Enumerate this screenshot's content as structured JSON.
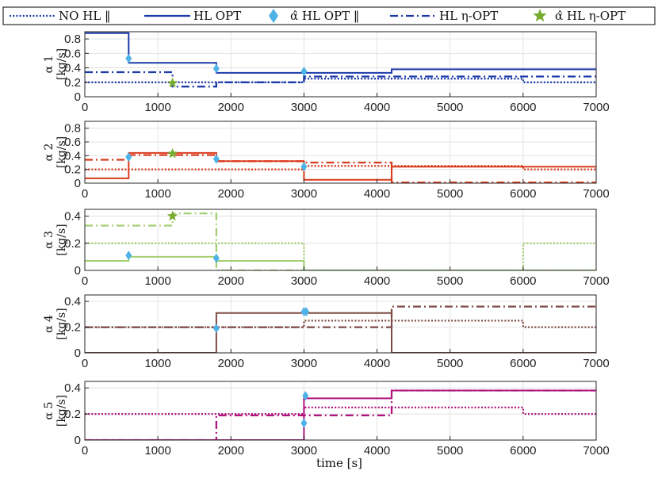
{
  "chart_data": {
    "type": "line",
    "legend": {
      "placement": "top",
      "entries": [
        {
          "label": "NO HL ‖",
          "style": "dotted",
          "symbol": "line"
        },
        {
          "label": "HL OPT",
          "style": "solid",
          "symbol": "line"
        },
        {
          "label": "α̂ HL OPT ‖",
          "style": "marker",
          "symbol": "diamond"
        },
        {
          "label": "HL η-OPT",
          "style": "dashdot",
          "symbol": "line"
        },
        {
          "label": "α̂ HL η-OPT",
          "style": "marker",
          "symbol": "star"
        }
      ],
      "diamond_color": "#4fb3e8",
      "star_color": "#77ac30"
    },
    "xlabel": "time [s]",
    "xlim": [
      0,
      7000
    ],
    "xticks": [
      0,
      1000,
      2000,
      3000,
      4000,
      5000,
      6000,
      7000
    ],
    "grid": true,
    "subplots": [
      {
        "ylabel_main": "α 1",
        "ylabel_unit": "[kg/s]",
        "color": "#1c3aa9",
        "ylim": [
          0,
          0.9
        ],
        "yticks": [
          0,
          0.2,
          0.4,
          0.6,
          0.8
        ],
        "series": [
          {
            "name": "NO HL ‖",
            "style": "dotted",
            "steps": [
              [
                0,
                0.2
              ],
              [
                3000,
                0.25
              ],
              [
                6000,
                0.2
              ],
              [
                7000,
                0.2
              ]
            ]
          },
          {
            "name": "HL OPT",
            "style": "solid",
            "steps": [
              [
                0,
                0.88
              ],
              [
                600,
                0.47
              ],
              [
                1800,
                0.33
              ],
              [
                4200,
                0.38
              ],
              [
                7000,
                0.38
              ]
            ]
          },
          {
            "name": "HL η-OPT",
            "style": "dashdot",
            "steps": [
              [
                0,
                0.34
              ],
              [
                1200,
                0.14
              ],
              [
                1800,
                0.2
              ],
              [
                3000,
                0.28
              ],
              [
                7000,
                0.28
              ]
            ]
          }
        ],
        "diamonds": [
          [
            600,
            0.53
          ],
          [
            1800,
            0.39
          ],
          [
            3000,
            0.35
          ]
        ],
        "stars": [
          [
            1200,
            0.19
          ]
        ]
      },
      {
        "ylabel_main": "α 2",
        "ylabel_unit": "[kg/s]",
        "color": "#d93a1c",
        "ylim": [
          0,
          0.9
        ],
        "yticks": [
          0,
          0.2,
          0.4,
          0.6,
          0.8
        ],
        "series": [
          {
            "name": "NO HL ‖",
            "style": "dotted",
            "steps": [
              [
                0,
                0.2
              ],
              [
                3000,
                0.25
              ],
              [
                6000,
                0.2
              ],
              [
                7000,
                0.2
              ]
            ]
          },
          {
            "name": "HL OPT",
            "style": "solid",
            "steps": [
              [
                0,
                0.07
              ],
              [
                600,
                0.44
              ],
              [
                1800,
                0.32
              ],
              [
                3000,
                0.05
              ],
              [
                4200,
                0.24
              ],
              [
                7000,
                0.24
              ]
            ]
          },
          {
            "name": "HL η-OPT",
            "style": "dashdot",
            "steps": [
              [
                0,
                0.34
              ],
              [
                600,
                0.41
              ],
              [
                1800,
                0.32
              ],
              [
                3000,
                0.3
              ],
              [
                4200,
                0.01
              ],
              [
                7000,
                0.01
              ]
            ]
          }
        ],
        "diamonds": [
          [
            600,
            0.38
          ],
          [
            1800,
            0.35
          ],
          [
            3000,
            0.24
          ]
        ],
        "stars": [
          [
            1200,
            0.43
          ]
        ]
      },
      {
        "ylabel_main": "α 3",
        "ylabel_unit": "[kg/s]",
        "color": "#a3cf73",
        "ylim": [
          0,
          0.45
        ],
        "yticks": [
          0,
          0.2,
          0.4
        ],
        "series": [
          {
            "name": "NO HL ‖",
            "style": "dotted",
            "steps": [
              [
                0,
                0.2
              ],
              [
                3000,
                0.0
              ],
              [
                6000,
                0.2
              ],
              [
                7000,
                0.2
              ]
            ]
          },
          {
            "name": "HL OPT",
            "style": "solid",
            "steps": [
              [
                0,
                0.07
              ],
              [
                600,
                0.1
              ],
              [
                1800,
                0.07
              ],
              [
                3000,
                0.0
              ],
              [
                7000,
                0.0
              ]
            ]
          },
          {
            "name": "HL η-OPT",
            "style": "dashdot",
            "steps": [
              [
                0,
                0.33
              ],
              [
                1200,
                0.42
              ],
              [
                1800,
                0.0
              ],
              [
                7000,
                0.0
              ]
            ]
          }
        ],
        "diamonds": [
          [
            600,
            0.11
          ],
          [
            1800,
            0.09
          ]
        ],
        "stars": [
          [
            1200,
            0.4
          ]
        ]
      },
      {
        "ylabel_main": "α 4",
        "ylabel_unit": "[kg/s]",
        "color": "#7e4a44",
        "ylim": [
          0,
          0.45
        ],
        "yticks": [
          0,
          0.2,
          0.4
        ],
        "series": [
          {
            "name": "NO HL ‖",
            "style": "dotted",
            "steps": [
              [
                0,
                0.2
              ],
              [
                3000,
                0.25
              ],
              [
                6000,
                0.2
              ],
              [
                7000,
                0.2
              ]
            ]
          },
          {
            "name": "HL OPT",
            "style": "solid",
            "steps": [
              [
                0,
                0.0
              ],
              [
                1800,
                0.31
              ],
              [
                4200,
                0.0
              ],
              [
                7000,
                0.0
              ]
            ]
          },
          {
            "name": "HL η-OPT",
            "style": "dashdot",
            "steps": [
              [
                0,
                0.2
              ],
              [
                1800,
                0.2
              ],
              [
                3000,
                0.2
              ],
              [
                4200,
                0.36
              ],
              [
                7000,
                0.36
              ]
            ]
          }
        ],
        "diamonds": [
          [
            1800,
            0.19
          ],
          [
            3000,
            0.32
          ],
          [
            3030,
            0.32
          ]
        ],
        "stars": []
      },
      {
        "ylabel_main": "α 5",
        "ylabel_unit": "[kg/s]",
        "color": "#b0167e",
        "ylim": [
          0,
          0.45
        ],
        "yticks": [
          0,
          0.2,
          0.4
        ],
        "series": [
          {
            "name": "NO HL ‖",
            "style": "dotted",
            "steps": [
              [
                0,
                0.2
              ],
              [
                3000,
                0.25
              ],
              [
                6000,
                0.2
              ],
              [
                7000,
                0.2
              ]
            ]
          },
          {
            "name": "HL OPT",
            "style": "solid",
            "steps": [
              [
                0,
                0.0
              ],
              [
                3000,
                0.32
              ],
              [
                4200,
                0.38
              ],
              [
                7000,
                0.38
              ]
            ]
          },
          {
            "name": "HL η-OPT",
            "style": "dashdot",
            "steps": [
              [
                0,
                0.0
              ],
              [
                1800,
                0.19
              ],
              [
                3000,
                0.19
              ],
              [
                4200,
                0.38
              ],
              [
                7000,
                0.38
              ]
            ]
          }
        ],
        "diamonds": [
          [
            3000,
            0.13
          ],
          [
            3020,
            0.34
          ]
        ],
        "stars": []
      }
    ]
  }
}
